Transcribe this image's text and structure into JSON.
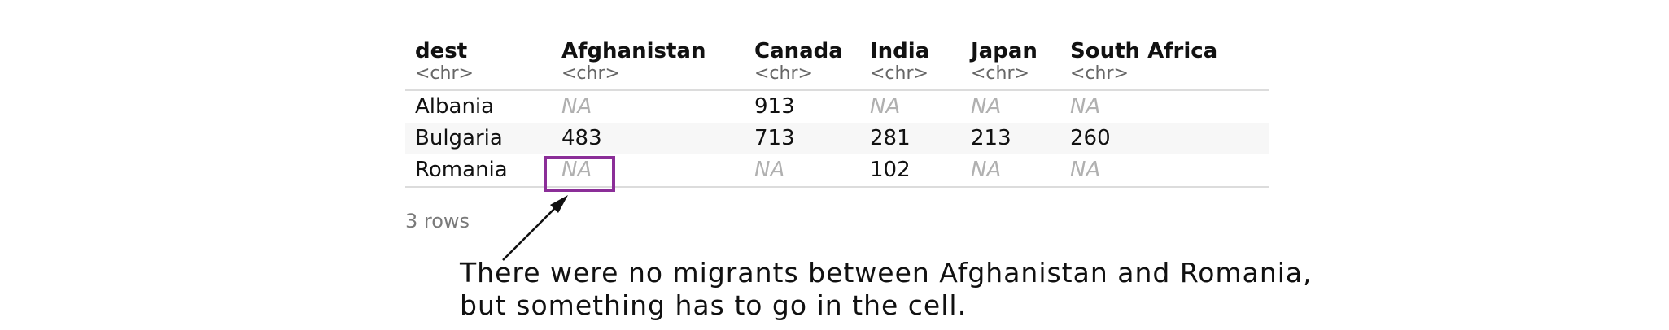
{
  "table": {
    "columns": [
      {
        "name": "dest",
        "type": "<chr>"
      },
      {
        "name": "Afghanistan",
        "type": "<chr>"
      },
      {
        "name": "Canada",
        "type": "<chr>"
      },
      {
        "name": "India",
        "type": "<chr>"
      },
      {
        "name": "Japan",
        "type": "<chr>"
      },
      {
        "name": "South Africa",
        "type": "<chr>"
      }
    ],
    "rows": [
      [
        "Albania",
        "NA",
        "913",
        "NA",
        "NA",
        "NA"
      ],
      [
        "Bulgaria",
        "483",
        "713",
        "281",
        "213",
        "260"
      ],
      [
        "Romania",
        "NA",
        "NA",
        "102",
        "NA",
        "NA"
      ]
    ],
    "footer": "3 rows"
  },
  "annotation": {
    "line1": "There were no migrants between Afghanistan and Romania,",
    "line2": "but something has to go in the cell."
  },
  "colors": {
    "highlight": "#8b2e98",
    "na_text": "#b0b0b0"
  }
}
